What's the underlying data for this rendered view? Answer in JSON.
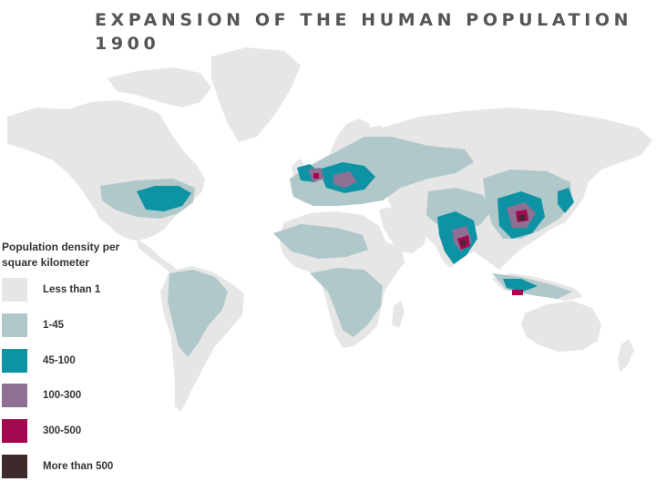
{
  "title": {
    "line1": "EXPANSION OF THE HUMAN POPULATION",
    "line2": "1900"
  },
  "legend": {
    "title": "Population density per square kilometer",
    "classes": [
      {
        "label": "Less than 1",
        "color": "#e6e6e6"
      },
      {
        "label": "1-45",
        "color": "#b0c8ca"
      },
      {
        "label": "45-100",
        "color": "#0e93a4"
      },
      {
        "label": "100-300",
        "color": "#8f7092"
      },
      {
        "label": "300-500",
        "color": "#a3074e"
      },
      {
        "label": "More than 500",
        "color": "#3d2a2b"
      }
    ]
  },
  "map": {
    "type": "choropleth",
    "projection": "world"
  }
}
